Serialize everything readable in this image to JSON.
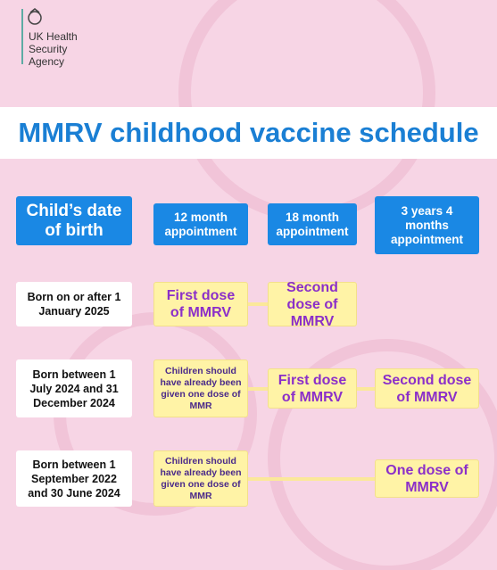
{
  "header": {
    "org": [
      "UK Health",
      "Security",
      "Agency"
    ]
  },
  "title": "MMRV childhood vaccine schedule",
  "columns": {
    "label": "Child’s date of birth",
    "appointments": [
      "12 month appointment",
      "18 month appointment",
      "3 years 4 months appointment"
    ]
  },
  "rows": [
    {
      "label": "Born on or after 1 January 2025",
      "cells": [
        "First dose of MMRV",
        "Second dose of MMRV",
        null
      ]
    },
    {
      "label": "Born between 1 July 2024 and 31 December 2024",
      "cells": [
        "Children should have already been given one dose of MMR",
        "First dose of MMRV",
        "Second dose of MMRV"
      ]
    },
    {
      "label": "Born between 1 September 2022 and 30 June 2024",
      "cells": [
        "Children should have already been given one dose of MMR",
        null,
        "One dose of MMRV"
      ]
    }
  ]
}
